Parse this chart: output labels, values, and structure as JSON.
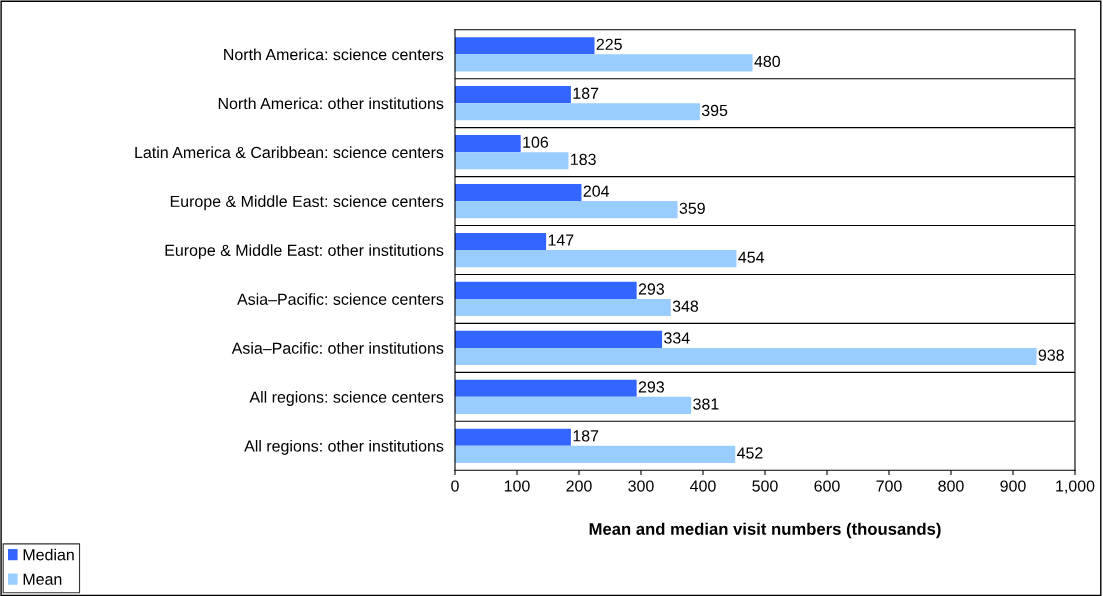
{
  "chart_data": {
    "type": "bar",
    "orientation": "horizontal",
    "xlabel": "Mean and median visit numbers (thousands)",
    "categories": [
      "North America: science centers",
      "North America: other institutions",
      "Latin America & Caribbean: science centers",
      "Europe & Middle East: science centers",
      "Europe & Middle East: other institutions",
      "Asia–Pacific: science centers",
      "Asia–Pacific: other institutions",
      "All regions: science centers",
      "All regions: other institutions"
    ],
    "series": [
      {
        "name": "Median",
        "color": "#3366ff",
        "values": [
          225,
          187,
          106,
          204,
          147,
          293,
          334,
          293,
          187
        ]
      },
      {
        "name": "Mean",
        "color": "#99ccff",
        "values": [
          480,
          395,
          183,
          359,
          454,
          348,
          938,
          381,
          452
        ]
      }
    ],
    "xlim": [
      0,
      1000
    ],
    "xticks": [
      0,
      100,
      200,
      300,
      400,
      500,
      600,
      700,
      800,
      900,
      {
        "value": 1000,
        "label": "1,000"
      }
    ],
    "grid": "y",
    "legend": "bottom left",
    "data_labels": true
  }
}
